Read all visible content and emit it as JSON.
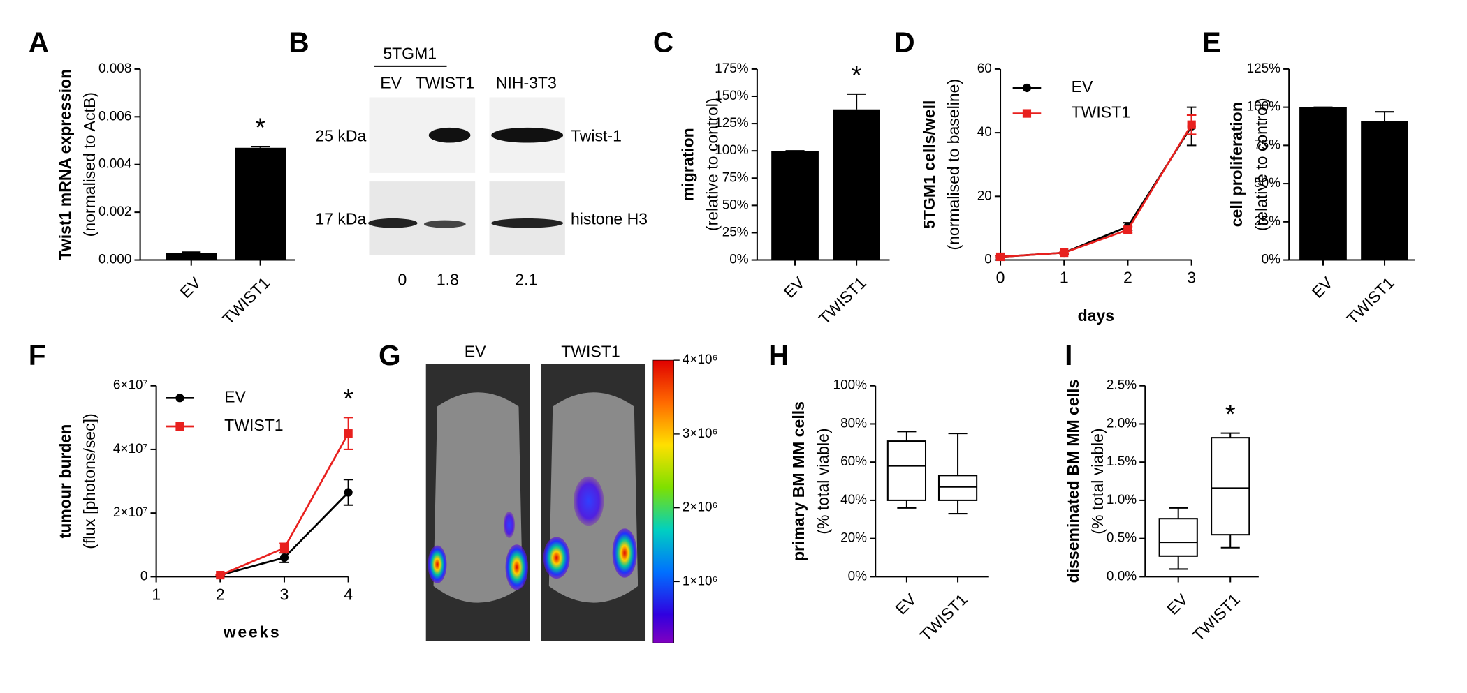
{
  "chart_data": [
    {
      "panel": "A",
      "type": "bar",
      "y_label": [
        "Twist1 mRNA expression",
        "(normalised to ActB)"
      ],
      "categories": [
        "EV",
        "TWIST1"
      ],
      "values": [
        0.0003,
        0.0047
      ],
      "errors": [
        3e-05,
        5e-05
      ],
      "color": "#000000",
      "ylim": [
        0,
        0.008
      ],
      "yticks": [
        {
          "value": 0,
          "label": "0.000"
        },
        {
          "value": 0.002,
          "label": "0.002"
        },
        {
          "value": 0.004,
          "label": "0.004"
        },
        {
          "value": 0.006,
          "label": "0.006"
        },
        {
          "value": 0.008,
          "label": "0.008"
        }
      ],
      "annotations": [
        {
          "text": "*",
          "x": "TWIST1"
        }
      ]
    },
    {
      "panel": "C",
      "type": "bar",
      "y_label": [
        "migration",
        "(relative to control)"
      ],
      "categories": [
        "EV",
        "TWIST1"
      ],
      "values": [
        100,
        138
      ],
      "errors": [
        0,
        14
      ],
      "color": "#000000",
      "ylim": [
        0,
        175
      ],
      "yticks": [
        {
          "value": 0,
          "label": "0%"
        },
        {
          "value": 25,
          "label": "25%"
        },
        {
          "value": 50,
          "label": "50%"
        },
        {
          "value": 75,
          "label": "75%"
        },
        {
          "value": 100,
          "label": "100%"
        },
        {
          "value": 125,
          "label": "125%"
        },
        {
          "value": 150,
          "label": "150%"
        },
        {
          "value": 175,
          "label": "175%"
        }
      ],
      "annotations": [
        {
          "text": "*",
          "x": "TWIST1"
        }
      ]
    },
    {
      "panel": "D",
      "type": "line",
      "y_label": [
        "5TGM1 cells/well",
        "(normalised to baseline)"
      ],
      "x_label": "days",
      "x": [
        0,
        1,
        2,
        3
      ],
      "xlim": [
        0,
        3
      ],
      "xticks": [
        0,
        1,
        2,
        3
      ],
      "ylim": [
        0,
        60
      ],
      "yticks": [
        0,
        20,
        40,
        60
      ],
      "series": [
        {
          "name": "EV",
          "color": "#000000",
          "marker": "circle",
          "values": [
            1,
            2.3,
            10.5,
            42
          ],
          "errors": [
            0.3,
            0.4,
            1.2,
            6
          ]
        },
        {
          "name": "TWIST1",
          "color": "#e8201e",
          "marker": "square",
          "values": [
            1,
            2.3,
            9.5,
            42.5
          ],
          "errors": [
            0.3,
            0.4,
            1,
            3
          ]
        }
      ],
      "legend": "upper left"
    },
    {
      "panel": "E",
      "type": "bar",
      "y_label": [
        "cell proliferation",
        "(relative to control)"
      ],
      "categories": [
        "EV",
        "TWIST1"
      ],
      "values": [
        100,
        91
      ],
      "errors": [
        0,
        6
      ],
      "color": "#000000",
      "ylim": [
        0,
        125
      ],
      "yticks": [
        {
          "value": 0,
          "label": "0%"
        },
        {
          "value": 25,
          "label": "25%"
        },
        {
          "value": 50,
          "label": "50%"
        },
        {
          "value": 75,
          "label": "75%"
        },
        {
          "value": 100,
          "label": "100%"
        },
        {
          "value": 125,
          "label": "125%"
        }
      ]
    },
    {
      "panel": "F",
      "type": "line",
      "y_label": [
        "tumour burden",
        "(flux [photons/sec])"
      ],
      "x_label": "weeks",
      "x": [
        2,
        3,
        4
      ],
      "xlim": [
        1,
        4
      ],
      "xticks": [
        1,
        2,
        3,
        4
      ],
      "ylim": [
        0,
        60000000
      ],
      "yticks": [
        0,
        {
          "value": 20000000,
          "label": "2×10⁷"
        },
        {
          "value": 40000000,
          "label": "4×10⁷"
        },
        {
          "value": 60000000,
          "label": "6×10⁷"
        }
      ],
      "series": [
        {
          "name": "EV",
          "color": "#000000",
          "marker": "circle",
          "values": [
            500000,
            6000000,
            26500000
          ],
          "errors": [
            200000,
            1500000,
            4000000
          ]
        },
        {
          "name": "TWIST1",
          "color": "#e8201e",
          "marker": "square",
          "values": [
            500000,
            9000000,
            45000000
          ],
          "errors": [
            200000,
            1500000,
            5000000
          ]
        }
      ],
      "legend": "upper left",
      "annotations": [
        {
          "text": "*",
          "x": 4
        }
      ]
    },
    {
      "panel": "H",
      "type": "box",
      "y_label": [
        "primary BM MM cells",
        "(% total viable)"
      ],
      "categories": [
        "EV",
        "TWIST1"
      ],
      "boxes": [
        {
          "min": 36,
          "q1": 40,
          "median": 58,
          "q3": 71,
          "max": 76
        },
        {
          "min": 33,
          "q1": 40,
          "median": 47,
          "q3": 53,
          "max": 75
        }
      ],
      "ylim": [
        0,
        100
      ],
      "yticks": [
        {
          "value": 0,
          "label": "0%"
        },
        {
          "value": 20,
          "label": "20%"
        },
        {
          "value": 40,
          "label": "40%"
        },
        {
          "value": 60,
          "label": "60%"
        },
        {
          "value": 80,
          "label": "80%"
        },
        {
          "value": 100,
          "label": "100%"
        }
      ]
    },
    {
      "panel": "I",
      "type": "box",
      "y_label": [
        "disseminated BM MM cells",
        "(% total viable)"
      ],
      "categories": [
        "EV",
        "TWIST1"
      ],
      "boxes": [
        {
          "min": 0.1,
          "q1": 0.27,
          "median": 0.45,
          "q3": 0.76,
          "max": 0.9
        },
        {
          "min": 0.38,
          "q1": 0.55,
          "median": 1.16,
          "q3": 1.82,
          "max": 1.88
        }
      ],
      "ylim": [
        0,
        2.5
      ],
      "yticks": [
        {
          "value": 0,
          "label": "0.0%"
        },
        {
          "value": 0.5,
          "label": "0.5%"
        },
        {
          "value": 1,
          "label": "1.0%"
        },
        {
          "value": 1.5,
          "label": "1.5%"
        },
        {
          "value": 2,
          "label": "2.0%"
        },
        {
          "value": 2.5,
          "label": "2.5%"
        }
      ],
      "annotations": [
        {
          "text": "*",
          "x": "TWIST1"
        }
      ]
    }
  ],
  "blot": {
    "panel": "B",
    "group_label": "5TGM1",
    "lanes": [
      "EV",
      "TWIST1",
      "NIH-3T3"
    ],
    "markers": [
      "25 kDa",
      "17 kDa"
    ],
    "proteins": [
      "Twist-1",
      "histone H3"
    ],
    "quantification": [
      0,
      1.8,
      2.1
    ]
  },
  "imaging": {
    "panel": "G",
    "columns": [
      "EV",
      "TWIST1"
    ],
    "colorbar_lim": [
      170000,
      4000000
    ],
    "colorbar_ticks": [
      {
        "value": 1000000,
        "label": "1×10⁶"
      },
      {
        "value": 2000000,
        "label": "2×10⁶"
      },
      {
        "value": 3000000,
        "label": "3×10⁶"
      },
      {
        "value": 4000000,
        "label": "4×10⁶"
      }
    ]
  }
}
